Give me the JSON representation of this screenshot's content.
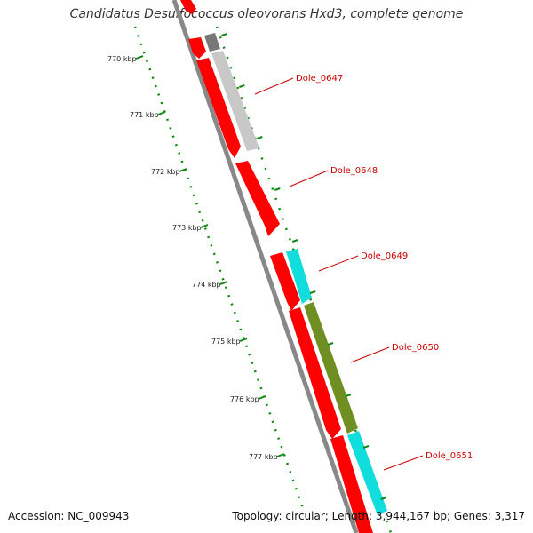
{
  "header": {
    "title": "Candidatus Desulfococcus oleovorans Hxd3, complete genome"
  },
  "ruler": {
    "ticks": [
      "770 kbp",
      "771 kbp",
      "772 kbp",
      "773 kbp",
      "774 kbp",
      "775 kbp",
      "776 kbp",
      "777 kbp"
    ]
  },
  "genes": [
    {
      "label": "Dole_0647",
      "color": "#cc0000"
    },
    {
      "label": "Dole_0648",
      "color": "#cc0000"
    },
    {
      "label": "Dole_0649",
      "color": "#cc0000"
    },
    {
      "label": "Dole_0650",
      "color": "#cc0000"
    },
    {
      "label": "Dole_0651",
      "color": "#cc0000"
    }
  ],
  "footer": {
    "accession": "Accession: NC_009943",
    "stats": "Topology: circular; Length: 3,944,167 bp; Genes: 3,317"
  },
  "colors": {
    "forward_gene": "#ff0000",
    "gray_feature": "#c8c8c8",
    "cyan_feature": "#11dddd",
    "olive_feature": "#6f8f22",
    "tick": "#118811"
  }
}
